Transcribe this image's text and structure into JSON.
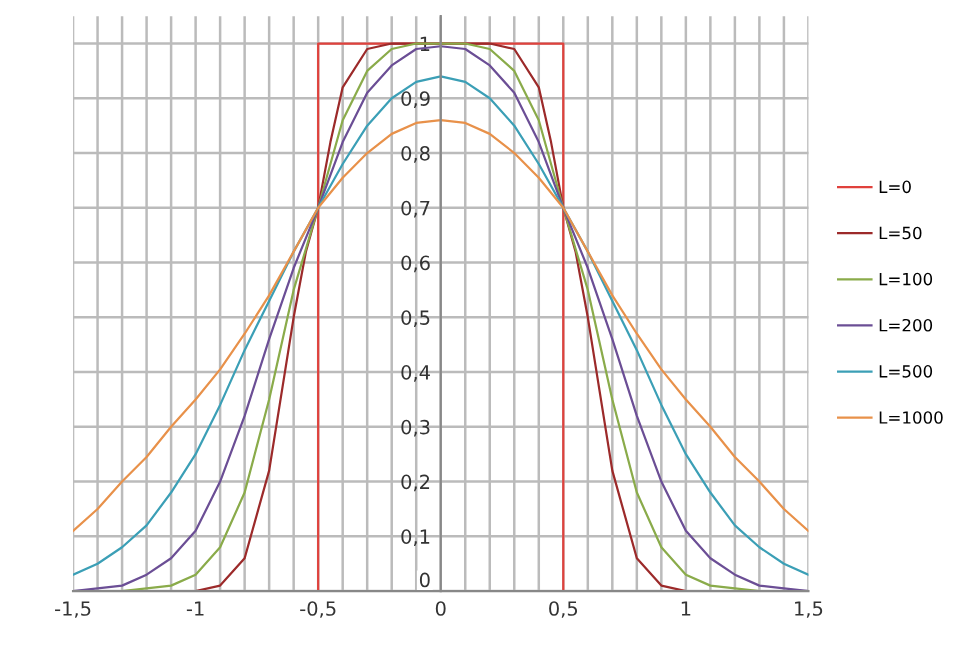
{
  "chart_data": {
    "type": "line",
    "xlim": [
      -1.5,
      1.5
    ],
    "ylim": [
      0,
      1.05
    ],
    "xticks": [
      {
        "value": -1.5,
        "label": "-1,5"
      },
      {
        "value": -1.4,
        "label": null
      },
      {
        "value": -1.3,
        "label": null
      },
      {
        "value": -1.2,
        "label": null
      },
      {
        "value": -1.1,
        "label": null
      },
      {
        "value": -1,
        "label": "-1"
      },
      {
        "value": -0.9,
        "label": null
      },
      {
        "value": -0.8,
        "label": null
      },
      {
        "value": -0.7,
        "label": null
      },
      {
        "value": -0.6,
        "label": null
      },
      {
        "value": -0.5,
        "label": "-0,5"
      },
      {
        "value": -0.4,
        "label": null
      },
      {
        "value": -0.3,
        "label": null
      },
      {
        "value": -0.2,
        "label": null
      },
      {
        "value": -0.1,
        "label": null
      },
      {
        "value": 0,
        "label": "0"
      },
      {
        "value": 0.1,
        "label": null
      },
      {
        "value": 0.2,
        "label": null
      },
      {
        "value": 0.3,
        "label": null
      },
      {
        "value": 0.4,
        "label": null
      },
      {
        "value": 0.5,
        "label": "0,5"
      },
      {
        "value": 0.6,
        "label": null
      },
      {
        "value": 0.7,
        "label": null
      },
      {
        "value": 0.8,
        "label": null
      },
      {
        "value": 0.9,
        "label": null
      },
      {
        "value": 1,
        "label": "1"
      },
      {
        "value": 1.1,
        "label": null
      },
      {
        "value": 1.2,
        "label": null
      },
      {
        "value": 1.3,
        "label": null
      },
      {
        "value": 1.4,
        "label": null
      },
      {
        "value": 1.5,
        "label": "1,5"
      }
    ],
    "yticks": [
      0,
      {
        "value": 0.1,
        "label": "0,1"
      },
      {
        "value": 0.2,
        "label": "0,2"
      },
      {
        "value": 0.3,
        "label": "0,3"
      },
      {
        "value": 0.4,
        "label": "0,4"
      },
      {
        "value": 0.5,
        "label": "0,5"
      },
      {
        "value": 0.6,
        "label": "0,6"
      },
      {
        "value": 0.7,
        "label": "0,7"
      },
      {
        "value": 0.8,
        "label": "0,8"
      },
      {
        "value": 0.9,
        "label": "0,9"
      },
      1
    ],
    "grid": true,
    "legend": "right",
    "marker": "none",
    "line_style": "solid",
    "x": [
      -1.5,
      -1.4,
      -1.3,
      -1.2,
      -1.1,
      -1,
      -0.9,
      -0.8,
      -0.7,
      -0.6,
      -0.5,
      -0.4,
      -0.3,
      -0.2,
      -0.1,
      0,
      0.1,
      0.2,
      0.3,
      0.4,
      0.5,
      0.6,
      0.7,
      0.8,
      0.9,
      1,
      1.1,
      1.2,
      1.3,
      1.4,
      1.5
    ],
    "series": [
      {
        "name": "L=0",
        "color": "#e0413c",
        "x": [
          -1.5,
          -0.5,
          -0.5,
          0.5,
          0.5,
          1.5
        ],
        "values": [
          0,
          0,
          1,
          1,
          0,
          0
        ]
      },
      {
        "name": "L=50",
        "color": "#9c2a2a",
        "x": [
          -1.5,
          -1,
          -0.9,
          -0.8,
          -0.7,
          -0.6,
          -0.55,
          -0.5,
          -0.45,
          -0.4,
          -0.3,
          -0.2,
          0,
          0.2,
          0.3,
          0.4,
          0.45,
          0.5,
          0.55,
          0.6,
          0.7,
          0.8,
          0.9,
          1,
          1.5
        ],
        "values": [
          0,
          0,
          0.01,
          0.06,
          0.22,
          0.5,
          0.62,
          0.7,
          0.82,
          0.92,
          0.99,
          1,
          1,
          1,
          0.99,
          0.92,
          0.82,
          0.7,
          0.62,
          0.5,
          0.22,
          0.06,
          0.01,
          0,
          0
        ]
      },
      {
        "name": "L=100",
        "color": "#8aab4a",
        "values": [
          0,
          0,
          0,
          0.005,
          0.01,
          0.03,
          0.08,
          0.18,
          0.35,
          0.55,
          0.7,
          0.86,
          0.95,
          0.99,
          1,
          1,
          1,
          0.99,
          0.95,
          0.86,
          0.7,
          0.55,
          0.35,
          0.18,
          0.08,
          0.03,
          0.01,
          0.005,
          0,
          0,
          0
        ]
      },
      {
        "name": "L=200",
        "color": "#6b4e95",
        "values": [
          0,
          0.005,
          0.01,
          0.03,
          0.06,
          0.11,
          0.2,
          0.32,
          0.46,
          0.59,
          0.7,
          0.82,
          0.91,
          0.96,
          0.99,
          0.995,
          0.99,
          0.96,
          0.91,
          0.82,
          0.7,
          0.59,
          0.46,
          0.32,
          0.2,
          0.11,
          0.06,
          0.03,
          0.01,
          0.005,
          0
        ]
      },
      {
        "name": "L=500",
        "color": "#3b9fb6",
        "values": [
          0.03,
          0.05,
          0.08,
          0.12,
          0.18,
          0.25,
          0.34,
          0.44,
          0.53,
          0.62,
          0.7,
          0.78,
          0.85,
          0.9,
          0.93,
          0.94,
          0.93,
          0.9,
          0.85,
          0.78,
          0.7,
          0.62,
          0.53,
          0.44,
          0.34,
          0.25,
          0.18,
          0.12,
          0.08,
          0.05,
          0.03
        ]
      },
      {
        "name": "L=1000",
        "color": "#e8914a",
        "values": [
          0.11,
          0.15,
          0.2,
          0.245,
          0.3,
          0.35,
          0.405,
          0.47,
          0.54,
          0.62,
          0.7,
          0.755,
          0.8,
          0.835,
          0.855,
          0.86,
          0.855,
          0.835,
          0.8,
          0.755,
          0.7,
          0.62,
          0.54,
          0.47,
          0.405,
          0.35,
          0.3,
          0.245,
          0.2,
          0.15,
          0.11
        ]
      }
    ]
  }
}
